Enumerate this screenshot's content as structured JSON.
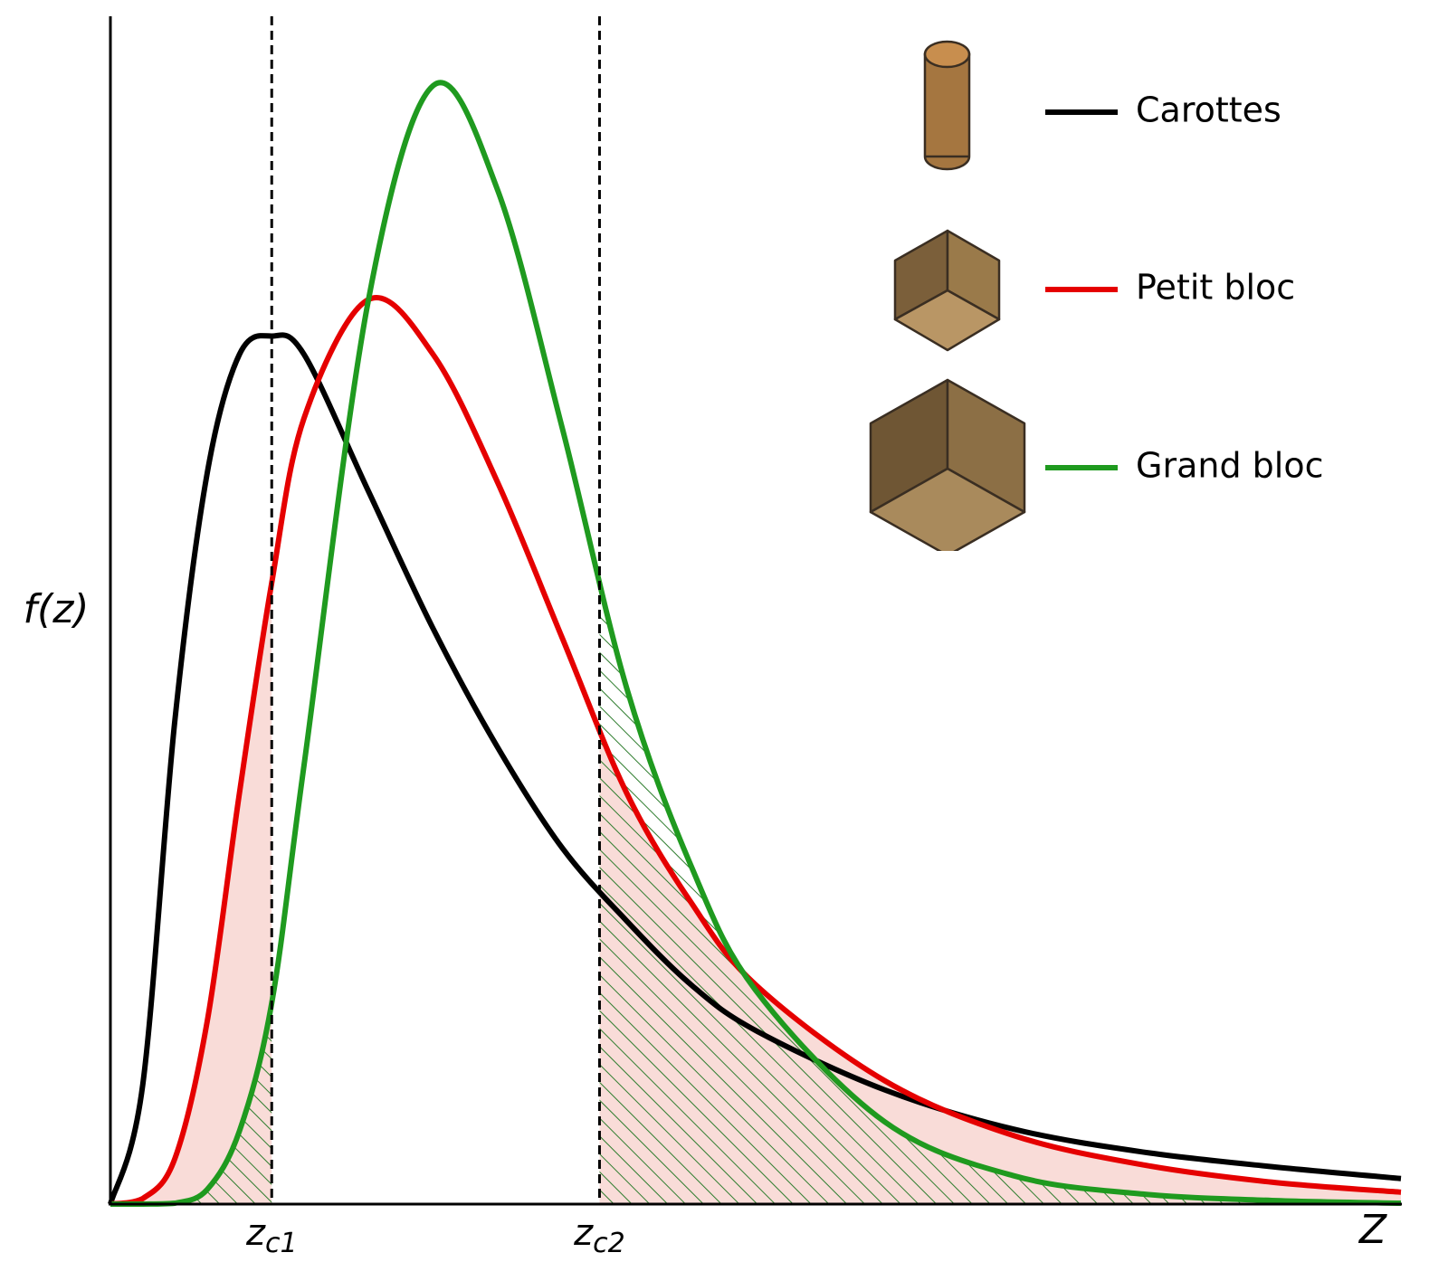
{
  "chart_data": {
    "type": "line",
    "ylabel": "f(z)",
    "xlabel": "Z",
    "x": [
      0,
      0.25,
      0.5,
      0.75,
      1,
      1.25,
      1.5,
      2,
      2.5,
      3,
      3.5,
      4,
      4.5,
      5,
      6,
      7,
      8,
      9,
      10
    ],
    "xlim": [
      0,
      10
    ],
    "ylim": [
      0,
      1.3
    ],
    "xticks": [
      {
        "value": 1.25,
        "label": "z",
        "subscript": "c1"
      },
      {
        "value": 3.79,
        "label": "z",
        "subscript": "c2"
      }
    ],
    "series": [
      {
        "name": "Carottes",
        "color": "#000000",
        "values": [
          0,
          0.13,
          0.53,
          0.8,
          0.93,
          0.95,
          0.93,
          0.78,
          0.63,
          0.5,
          0.39,
          0.31,
          0.24,
          0.19,
          0.125,
          0.082,
          0.057,
          0.041,
          0.028
        ]
      },
      {
        "name": "Petit bloc",
        "color": "#e50000",
        "values": [
          0,
          0.006,
          0.05,
          0.2,
          0.45,
          0.68,
          0.86,
          0.99,
          0.93,
          0.79,
          0.62,
          0.45,
          0.33,
          0.24,
          0.135,
          0.075,
          0.043,
          0.024,
          0.013
        ]
      },
      {
        "name": "Grand bloc",
        "color": "#1f9a1f",
        "values": [
          0,
          0,
          0.001,
          0.016,
          0.08,
          0.22,
          0.48,
          0.99,
          1.224,
          1.11,
          0.85,
          0.565,
          0.37,
          0.234,
          0.09,
          0.031,
          0.011,
          0.004,
          0.001
        ]
      }
    ]
  }
}
